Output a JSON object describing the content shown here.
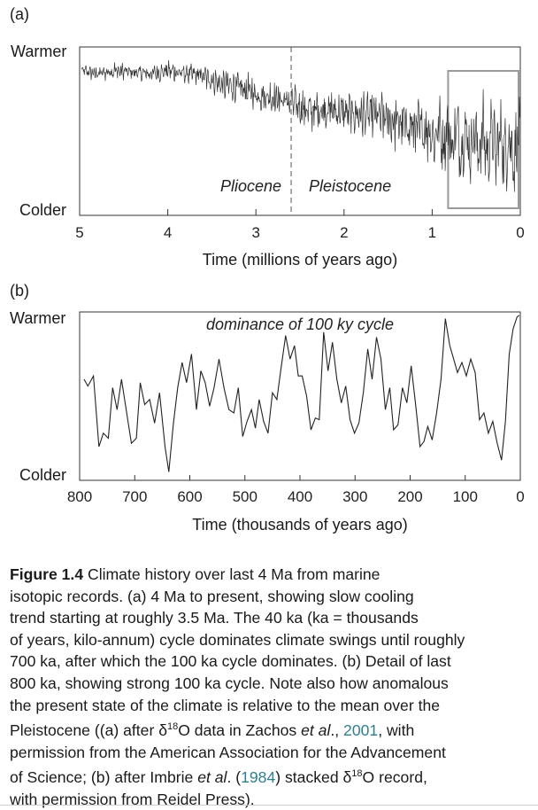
{
  "chart_data": [
    {
      "panel_label": "(a)",
      "type": "line",
      "ylabel_top": "Warmer",
      "ylabel_bottom": "Colder",
      "xlabel": "Time (millions of years ago)",
      "x_ticks": [
        "5",
        "4",
        "3",
        "2",
        "1",
        "0"
      ],
      "x_tick_values": [
        5,
        4,
        3,
        2,
        1,
        0
      ],
      "xlim": [
        5.0,
        0.0
      ],
      "ylim": [
        0,
        1
      ],
      "boundary_x": 2.6,
      "epochs": [
        "Pliocene",
        "Pleistocene"
      ],
      "highlight_box_x": [
        1.0,
        0.0
      ],
      "series": [
        {
          "values_note_free": true,
          "x": [
            4.98,
            4.8,
            4.6,
            4.4,
            4.2,
            4.0,
            3.8,
            3.6,
            3.4,
            3.2,
            3.0,
            2.8,
            2.6,
            2.4,
            2.2,
            2.0,
            1.8,
            1.6,
            1.4,
            1.2,
            1.0,
            0.8,
            0.6,
            0.4,
            0.2,
            0.0
          ],
          "y": [
            0.86,
            0.84,
            0.86,
            0.85,
            0.84,
            0.86,
            0.84,
            0.83,
            0.78,
            0.76,
            0.72,
            0.7,
            0.67,
            0.62,
            0.63,
            0.61,
            0.6,
            0.58,
            0.55,
            0.52,
            0.5,
            0.47,
            0.45,
            0.43,
            0.42,
            0.4
          ],
          "amplitude": [
            0.04,
            0.05,
            0.06,
            0.05,
            0.06,
            0.07,
            0.07,
            0.08,
            0.1,
            0.11,
            0.12,
            0.12,
            0.13,
            0.14,
            0.14,
            0.15,
            0.16,
            0.17,
            0.18,
            0.19,
            0.22,
            0.25,
            0.28,
            0.3,
            0.3,
            0.3
          ]
        }
      ]
    },
    {
      "panel_label": "(b)",
      "type": "line",
      "ylabel_top": "Warmer",
      "ylabel_bottom": "Colder",
      "xlabel": "Time (thousands of years ago)",
      "x_ticks": [
        "800",
        "700",
        "600",
        "500",
        "400",
        "300",
        "200",
        "100",
        "0"
      ],
      "x_tick_values": [
        800,
        700,
        600,
        500,
        400,
        300,
        200,
        100,
        0
      ],
      "xlim": [
        800,
        0
      ],
      "ylim": [
        0,
        1
      ],
      "annotation": "dominance of 100 ky cycle",
      "series": [
        {
          "x": [
            792,
            785,
            775,
            765,
            757,
            748,
            740,
            732,
            724,
            716,
            706,
            697,
            690,
            682,
            673,
            664,
            655,
            645,
            638,
            630,
            622,
            614,
            606,
            597,
            588,
            580,
            572,
            564,
            556,
            547,
            538,
            529,
            520,
            512,
            504,
            496,
            488,
            481,
            474,
            466,
            458,
            450,
            442,
            435,
            426,
            418,
            410,
            403,
            396,
            388,
            380,
            372,
            365,
            357,
            349,
            341,
            333,
            325,
            317,
            309,
            301,
            293,
            285,
            277,
            269,
            261,
            253,
            245,
            237,
            230,
            222,
            214,
            206,
            198,
            190,
            182,
            175,
            168,
            160,
            152,
            144,
            136,
            128,
            121,
            114,
            106,
            98,
            90,
            82,
            74,
            66,
            58,
            50,
            42,
            34,
            27,
            20,
            13,
            6,
            2
          ],
          "y": [
            0.6,
            0.56,
            0.62,
            0.2,
            0.28,
            0.25,
            0.55,
            0.42,
            0.6,
            0.43,
            0.22,
            0.25,
            0.58,
            0.45,
            0.48,
            0.34,
            0.52,
            0.2,
            0.05,
            0.33,
            0.55,
            0.7,
            0.58,
            0.75,
            0.42,
            0.65,
            0.58,
            0.44,
            0.55,
            0.72,
            0.55,
            0.42,
            0.4,
            0.55,
            0.26,
            0.35,
            0.42,
            0.31,
            0.48,
            0.35,
            0.28,
            0.52,
            0.48,
            0.65,
            0.86,
            0.72,
            0.8,
            0.62,
            0.62,
            0.5,
            0.3,
            0.37,
            0.36,
            0.88,
            0.65,
            0.82,
            0.6,
            0.46,
            0.56,
            0.36,
            0.28,
            0.34,
            0.52,
            0.78,
            0.6,
            0.85,
            0.72,
            0.42,
            0.55,
            0.3,
            0.33,
            0.55,
            0.46,
            0.68,
            0.45,
            0.2,
            0.23,
            0.32,
            0.24,
            0.4,
            0.6,
            0.96,
            0.8,
            0.72,
            0.64,
            0.7,
            0.62,
            0.72,
            0.64,
            0.36,
            0.4,
            0.28,
            0.35,
            0.22,
            0.12,
            0.35,
            0.75,
            0.9,
            0.97,
            0.98
          ]
        }
      ]
    }
  ],
  "caption": {
    "figure_label": "Figure 1.4",
    "lines": [
      "Climate history over last 4 Ma from marine",
      "isotopic records. (a) 4 Ma to present, showing slow cooling",
      "trend starting at roughly 3.5 Ma. The 40 ka (ka = thousands",
      "of years, kilo-annum) cycle dominates climate swings until roughly",
      "700 ka, after which the 100 ka cycle dominates. (b) Detail of last",
      "800 ka, showing strong 100 ka cycle. Note also how anomalous",
      "the present state of the climate is relative to the mean over the",
      "Pleistocene ((a) after δ18O data in Zachos et al., 2001, with",
      "permission from the American Association for the Advancement",
      "of Science; (b) after Imbrie et al. (1984) stacked δ18O record,",
      "with permission from Reidel Press)."
    ],
    "line8_parts": [
      "Pleistocene ((a) after δ",
      "18",
      "O data in Zachos ",
      "et al",
      "., ",
      "2001",
      ", with"
    ],
    "line10_parts": [
      "of Science; (b) after Imbrie ",
      "et al",
      ". (",
      "1984",
      ") stacked δ",
      "18",
      "O record,"
    ]
  }
}
